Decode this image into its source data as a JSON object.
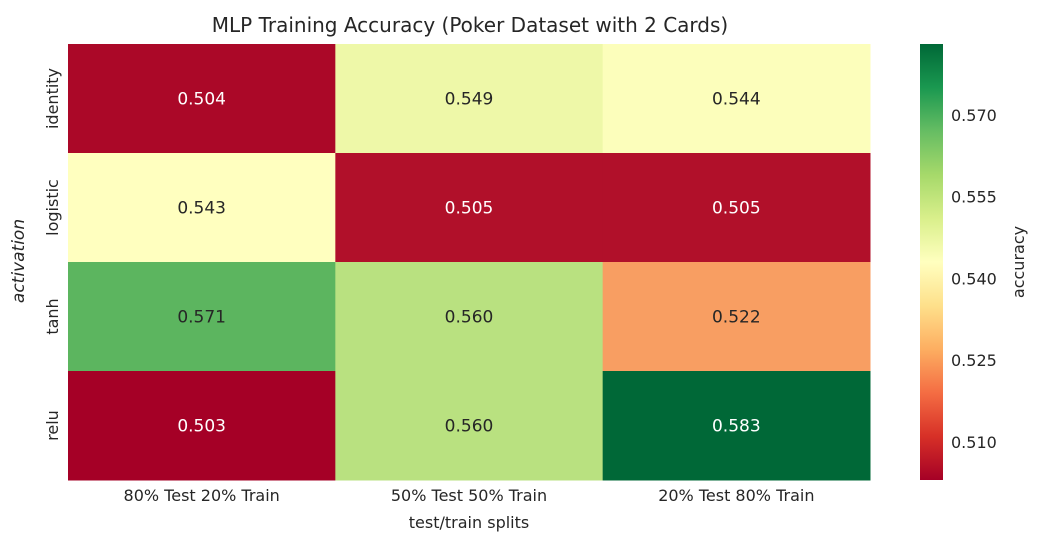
{
  "chart_data": {
    "type": "heatmap",
    "title": "MLP Training Accuracy (Poker Dataset with 2 Cards)",
    "xlabel": "test/train splits",
    "ylabel": "activation",
    "x_categories": [
      "80% Test 20% Train",
      "50% Test 50% Train",
      "20% Test 80% Train"
    ],
    "y_categories": [
      "identity",
      "logistic",
      "tanh",
      "relu"
    ],
    "values": [
      [
        0.504,
        0.549,
        0.544
      ],
      [
        0.543,
        0.505,
        0.505
      ],
      [
        0.571,
        0.56,
        0.522
      ],
      [
        0.503,
        0.56,
        0.583
      ]
    ],
    "value_labels": [
      [
        "0.504",
        "0.549",
        "0.544"
      ],
      [
        "0.543",
        "0.505",
        "0.505"
      ],
      [
        "0.571",
        "0.560",
        "0.522"
      ],
      [
        "0.503",
        "0.560",
        "0.583"
      ]
    ],
    "colormap": "RdYlGn",
    "colorbar": {
      "label": "accuracy",
      "range": [
        0.503,
        0.583
      ],
      "ticks": [
        0.51,
        0.525,
        0.54,
        0.555,
        0.57
      ],
      "tick_labels": [
        "0.510",
        "0.525",
        "0.540",
        "0.555",
        "0.570"
      ]
    },
    "grid": false,
    "colors": [
      "#a50026",
      "#f46d43",
      "#fee08b",
      "#ffffbf",
      "#d9ef8b",
      "#66bd63",
      "#006837"
    ]
  }
}
